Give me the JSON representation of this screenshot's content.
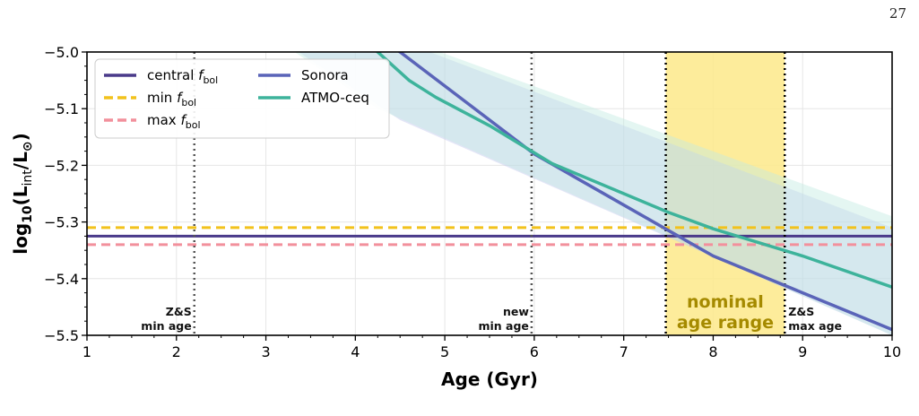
{
  "page_number": "27",
  "chart_data": {
    "type": "line",
    "xlabel": "Age (Gyr)",
    "ylabel_parts": {
      "pre": "log",
      "sub10": "10",
      "open": "(L",
      "sub": "int",
      "mid": "/L",
      "sun": "⊙",
      "close": ")"
    },
    "xlim": [
      1,
      10
    ],
    "ylim": [
      -5.5,
      -5.0
    ],
    "xticks": [
      1,
      2,
      3,
      4,
      5,
      6,
      7,
      8,
      9,
      10
    ],
    "yticks": [
      -5.5,
      -5.4,
      -5.3,
      -5.2,
      -5.1,
      -5.0
    ],
    "ytick_labels": [
      "−5.5",
      "−5.4",
      "−5.3",
      "−5.2",
      "−5.1",
      "−5.0"
    ],
    "grid": true,
    "legend_position": "top-left",
    "series": [
      {
        "name": "Sonora",
        "color": "#5a64b8",
        "x": [
          1,
          4.5,
          6.0,
          7.5,
          8.0,
          9.0,
          10.0
        ],
        "y": [
          -4.64,
          -5.0,
          -5.18,
          -5.315,
          -5.36,
          -5.425,
          -5.49
        ]
      },
      {
        "name": "ATMO-ceq",
        "color": "#3db39b",
        "x": [
          1,
          4.25,
          4.6,
          4.9,
          5.5,
          6.2,
          7.5,
          8.0,
          9.0,
          10.0
        ],
        "y": [
          -4.6,
          -5.0,
          -5.05,
          -5.08,
          -5.13,
          -5.197,
          -5.283,
          -5.312,
          -5.36,
          -5.415
        ]
      }
    ],
    "bands": [
      {
        "name": "Sonora range",
        "color": "#c2c5ee",
        "x": [
          1,
          4.5,
          10
        ],
        "upper": [
          -4.5,
          -4.98,
          -5.31
        ],
        "lower": [
          -4.75,
          -5.12,
          -5.5
        ]
      },
      {
        "name": "ATMO-ceq range",
        "color": "#c4ece3",
        "x": [
          1,
          4.25,
          10
        ],
        "upper": [
          -4.5,
          -4.96,
          -5.29
        ],
        "lower": [
          -4.75,
          -5.1,
          -5.5
        ]
      }
    ],
    "hlines": [
      {
        "name": "central f_bol",
        "y": -5.325,
        "color": "#4a3a8a",
        "style": "solid"
      },
      {
        "name": "min f_bol",
        "y": -5.31,
        "color": "#f2c21c",
        "style": "dashed"
      },
      {
        "name": "max f_bol",
        "y": -5.34,
        "color": "#f2909c",
        "style": "dashed"
      }
    ],
    "vlines": [
      {
        "x": 2.2,
        "style": "dotted-gray",
        "label_lines": [
          "Z&S",
          "min age"
        ],
        "align": "end"
      },
      {
        "x": 5.97,
        "style": "dotted-gray",
        "label_lines": [
          "new",
          "min age"
        ],
        "align": "end"
      },
      {
        "x": 7.47,
        "style": "dotted-black",
        "label_lines": [],
        "align": "end"
      },
      {
        "x": 8.8,
        "style": "dotted-black",
        "label_lines": [
          "Z&S",
          "max age"
        ],
        "align": "start"
      }
    ],
    "span": {
      "x0": 7.47,
      "x1": 8.8,
      "color": "#fde98a",
      "label_lines": [
        "nominal",
        "age range"
      ]
    },
    "legend": [
      {
        "label": "central ",
        "italic": "f",
        "sub": "bol",
        "color": "#4a3a8a",
        "style": "solid"
      },
      {
        "label": "min ",
        "italic": "f",
        "sub": "bol",
        "color": "#f2c21c",
        "style": "dashed"
      },
      {
        "label": "max ",
        "italic": "f",
        "sub": "bol",
        "color": "#f2909c",
        "style": "dashed"
      },
      {
        "label": "Sonora",
        "italic": "",
        "sub": "",
        "color": "#5a64b8",
        "style": "solid"
      },
      {
        "label": "ATMO-ceq",
        "italic": "",
        "sub": "",
        "color": "#3db39b",
        "style": "solid"
      }
    ]
  }
}
